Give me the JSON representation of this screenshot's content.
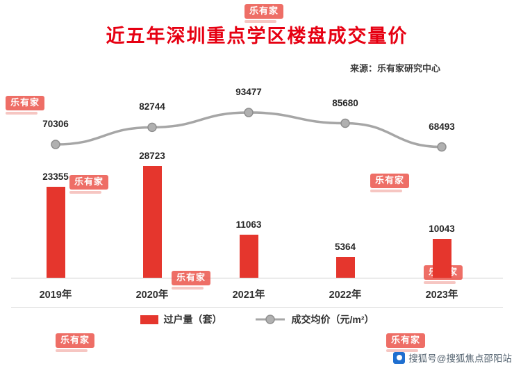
{
  "header": {
    "title": "近五年深圳重点学区楼盘成交量价",
    "source": "来源：乐有家研究中心"
  },
  "chart_data": {
    "type": "combo-bar-line",
    "categories": [
      "2019年",
      "2020年",
      "2021年",
      "2022年",
      "2023年"
    ],
    "series": [
      {
        "name": "过户量（套）",
        "type": "bar",
        "values": [
          23355,
          28723,
          11063,
          5364,
          10043
        ],
        "color": "#e5362d"
      },
      {
        "name": "成交均价（元/m²）",
        "type": "line",
        "values": [
          70306,
          82744,
          93477,
          85680,
          68493
        ],
        "color": "#a6a6a6"
      }
    ],
    "title": "近五年深圳重点学区楼盘成交量价",
    "xlabel": "",
    "ylabel": "",
    "legend_position": "bottom",
    "grid": false,
    "accent_color": "#e60012"
  },
  "watermark": {
    "text": "乐有家"
  },
  "footer": {
    "text": "搜狐号@搜狐焦点邵阳站"
  }
}
